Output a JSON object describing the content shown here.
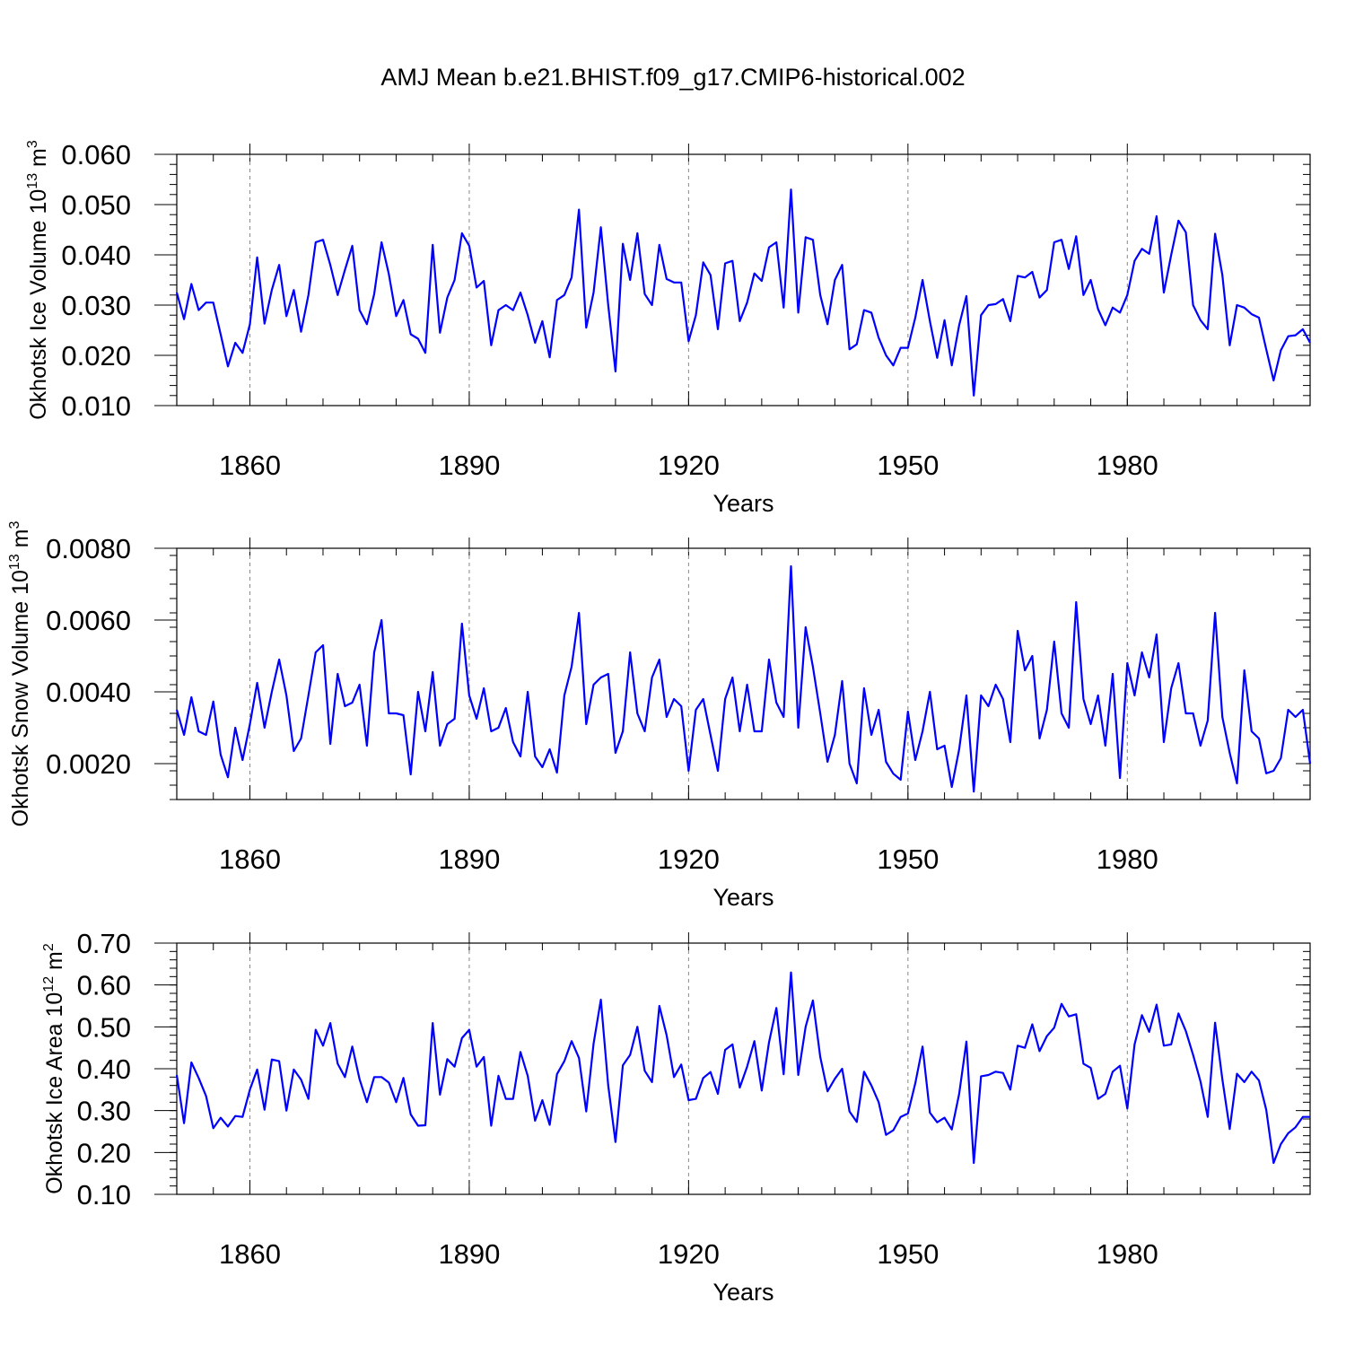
{
  "title": "AMJ Mean b.e21.BHIST.f09_g17.CMIP6-historical.002",
  "line_color": "#0000ff",
  "chart_data": [
    {
      "type": "line",
      "ylabel": "Okhotsk Ice Volume 10",
      "ylabel_exp": "13",
      "ylabel_unit": "m",
      "ylabel_unit_exp": "3",
      "xlabel": "Years",
      "xlim": [
        1850,
        2005
      ],
      "ylim": [
        0.01,
        0.06
      ],
      "yticks": [
        0.01,
        0.02,
        0.03,
        0.04,
        0.05,
        0.06
      ],
      "ytick_labels": [
        "0.010",
        "0.020",
        "0.030",
        "0.040",
        "0.050",
        "0.060"
      ],
      "xticks": [
        1860,
        1890,
        1920,
        1950,
        1980
      ],
      "xtick_labels": [
        "1860",
        "1890",
        "1920",
        "1950",
        "1980"
      ],
      "grid": "dashed vertical at major x ticks",
      "series": [
        {
          "name": "Okhotsk Ice Volume",
          "x_start": 1850,
          "values": [
            0.0325,
            0.0272,
            0.0342,
            0.029,
            0.0305,
            0.0305,
            0.0242,
            0.0178,
            0.0225,
            0.0205,
            0.0262,
            0.0395,
            0.0263,
            0.033,
            0.038,
            0.0278,
            0.033,
            0.0247,
            0.032,
            0.0425,
            0.043,
            0.038,
            0.032,
            0.037,
            0.0418,
            0.029,
            0.0262,
            0.0322,
            0.0425,
            0.0362,
            0.0278,
            0.031,
            0.0242,
            0.0233,
            0.0205,
            0.042,
            0.0245,
            0.0315,
            0.035,
            0.0443,
            0.0418,
            0.0335,
            0.0348,
            0.022,
            0.029,
            0.03,
            0.029,
            0.0325,
            0.028,
            0.0225,
            0.0268,
            0.0196,
            0.031,
            0.032,
            0.0355,
            0.049,
            0.0255,
            0.0325,
            0.0455,
            0.03,
            0.0168,
            0.0422,
            0.035,
            0.0443,
            0.0322,
            0.03,
            0.042,
            0.0352,
            0.0345,
            0.0345,
            0.0228,
            0.028,
            0.0385,
            0.036,
            0.0252,
            0.0383,
            0.0388,
            0.0268,
            0.0305,
            0.0363,
            0.0348,
            0.0415,
            0.0425,
            0.0295,
            0.053,
            0.0285,
            0.0435,
            0.043,
            0.032,
            0.0262,
            0.035,
            0.038,
            0.0212,
            0.0222,
            0.029,
            0.0285,
            0.0235,
            0.02,
            0.018,
            0.0215,
            0.0215,
            0.0275,
            0.035,
            0.0268,
            0.0195,
            0.027,
            0.018,
            0.026,
            0.0318,
            0.012,
            0.028,
            0.03,
            0.0302,
            0.0312,
            0.0268,
            0.0358,
            0.0355,
            0.0366,
            0.0315,
            0.033,
            0.0425,
            0.043,
            0.0372,
            0.0437,
            0.032,
            0.035,
            0.0292,
            0.026,
            0.0295,
            0.0285,
            0.032,
            0.0388,
            0.0412,
            0.0402,
            0.0477,
            0.0325,
            0.04,
            0.0468,
            0.0445,
            0.03,
            0.027,
            0.0252,
            0.0442,
            0.036,
            0.022,
            0.03,
            0.0295,
            0.0282,
            0.0275,
            0.0212,
            0.015,
            0.021,
            0.0238,
            0.024,
            0.0252,
            0.0225
          ]
        }
      ]
    },
    {
      "type": "line",
      "ylabel": "Okhotsk Snow Volume 10",
      "ylabel_exp": "13",
      "ylabel_unit": "m",
      "ylabel_unit_exp": "3",
      "xlabel": "Years",
      "xlim": [
        1850,
        2005
      ],
      "ylim": [
        0.001,
        0.008
      ],
      "yticks": [
        0.002,
        0.004,
        0.006,
        0.008
      ],
      "ytick_labels": [
        "0.0020",
        "0.0040",
        "0.0060",
        "0.0080"
      ],
      "xticks": [
        1860,
        1890,
        1920,
        1950,
        1980
      ],
      "xtick_labels": [
        "1860",
        "1890",
        "1920",
        "1950",
        "1980"
      ],
      "grid": "dashed vertical at major x ticks",
      "series": [
        {
          "name": "Okhotsk Snow Volume",
          "x_start": 1850,
          "values": [
            0.0035,
            0.0028,
            0.00385,
            0.0029,
            0.0028,
            0.00373,
            0.00225,
            0.00162,
            0.003,
            0.0021,
            0.0031,
            0.00425,
            0.003,
            0.004,
            0.0049,
            0.0039,
            0.00235,
            0.0027,
            0.0039,
            0.0051,
            0.0053,
            0.00255,
            0.0045,
            0.0036,
            0.0037,
            0.0042,
            0.0025,
            0.0051,
            0.006,
            0.0034,
            0.0034,
            0.00335,
            0.0017,
            0.004,
            0.0029,
            0.00455,
            0.0025,
            0.0031,
            0.00325,
            0.0059,
            0.0039,
            0.00325,
            0.0041,
            0.0029,
            0.003,
            0.00355,
            0.0026,
            0.0022,
            0.004,
            0.0022,
            0.0019,
            0.0024,
            0.00175,
            0.0039,
            0.0047,
            0.0062,
            0.0031,
            0.0042,
            0.0044,
            0.0045,
            0.0023,
            0.0029,
            0.0051,
            0.0034,
            0.0029,
            0.0044,
            0.0049,
            0.0033,
            0.0038,
            0.0036,
            0.0018,
            0.0035,
            0.0038,
            0.0028,
            0.0018,
            0.0038,
            0.0044,
            0.0029,
            0.0042,
            0.0029,
            0.0029,
            0.0049,
            0.0037,
            0.0033,
            0.0075,
            0.003,
            0.0058,
            0.0047,
            0.0034,
            0.00205,
            0.0028,
            0.0043,
            0.002,
            0.00145,
            0.0041,
            0.0028,
            0.0035,
            0.00205,
            0.00172,
            0.00155,
            0.00345,
            0.0021,
            0.0029,
            0.004,
            0.0024,
            0.0025,
            0.00135,
            0.0024,
            0.0039,
            0.00122,
            0.0039,
            0.0036,
            0.0042,
            0.0038,
            0.0026,
            0.0057,
            0.0046,
            0.005,
            0.0027,
            0.0035,
            0.0054,
            0.0034,
            0.003,
            0.0065,
            0.0038,
            0.0031,
            0.0039,
            0.0025,
            0.0045,
            0.0016,
            0.0048,
            0.0039,
            0.0051,
            0.0044,
            0.0056,
            0.0026,
            0.0041,
            0.0048,
            0.0034,
            0.0034,
            0.0025,
            0.0032,
            0.0062,
            0.0033,
            0.0023,
            0.00145,
            0.0046,
            0.0029,
            0.0027,
            0.00173,
            0.0018,
            0.00215,
            0.0035,
            0.0033,
            0.0035,
            0.002
          ]
        }
      ]
    },
    {
      "type": "line",
      "ylabel": "Okhotsk Ice Area 10",
      "ylabel_exp": "12",
      "ylabel_unit": "m",
      "ylabel_unit_exp": "2",
      "xlabel": "Years",
      "xlim": [
        1850,
        2005
      ],
      "ylim": [
        0.1,
        0.7
      ],
      "yticks": [
        0.1,
        0.2,
        0.3,
        0.4,
        0.5,
        0.6,
        0.7
      ],
      "ytick_labels": [
        "0.10",
        "0.20",
        "0.30",
        "0.40",
        "0.50",
        "0.60",
        "0.70"
      ],
      "xticks": [
        1860,
        1890,
        1920,
        1950,
        1980
      ],
      "xtick_labels": [
        "1860",
        "1890",
        "1920",
        "1950",
        "1980"
      ],
      "grid": "dashed vertical at major x ticks",
      "series": [
        {
          "name": "Okhotsk Ice Area",
          "x_start": 1850,
          "values": [
            0.385,
            0.27,
            0.415,
            0.378,
            0.335,
            0.258,
            0.283,
            0.262,
            0.287,
            0.285,
            0.35,
            0.398,
            0.302,
            0.422,
            0.418,
            0.3,
            0.398,
            0.374,
            0.328,
            0.493,
            0.455,
            0.509,
            0.412,
            0.38,
            0.453,
            0.375,
            0.32,
            0.38,
            0.38,
            0.367,
            0.32,
            0.378,
            0.291,
            0.264,
            0.265,
            0.509,
            0.338,
            0.423,
            0.405,
            0.473,
            0.493,
            0.405,
            0.428,
            0.264,
            0.383,
            0.328,
            0.328,
            0.44,
            0.383,
            0.276,
            0.325,
            0.266,
            0.387,
            0.418,
            0.466,
            0.426,
            0.298,
            0.46,
            0.565,
            0.36,
            0.225,
            0.408,
            0.433,
            0.5,
            0.395,
            0.368,
            0.55,
            0.48,
            0.38,
            0.41,
            0.325,
            0.328,
            0.378,
            0.392,
            0.34,
            0.445,
            0.458,
            0.355,
            0.405,
            0.466,
            0.348,
            0.463,
            0.545,
            0.387,
            0.63,
            0.385,
            0.5,
            0.563,
            0.428,
            0.346,
            0.376,
            0.4,
            0.298,
            0.273,
            0.393,
            0.36,
            0.32,
            0.242,
            0.253,
            0.285,
            0.293,
            0.365,
            0.453,
            0.295,
            0.272,
            0.283,
            0.255,
            0.34,
            0.465,
            0.175,
            0.382,
            0.385,
            0.393,
            0.39,
            0.35,
            0.455,
            0.45,
            0.506,
            0.442,
            0.478,
            0.498,
            0.555,
            0.525,
            0.53,
            0.412,
            0.402,
            0.328,
            0.34,
            0.393,
            0.407,
            0.305,
            0.458,
            0.528,
            0.488,
            0.553,
            0.455,
            0.458,
            0.532,
            0.49,
            0.433,
            0.37,
            0.285,
            0.51,
            0.375,
            0.256,
            0.388,
            0.368,
            0.393,
            0.372,
            0.302,
            0.175,
            0.22,
            0.246,
            0.26,
            0.285,
            0.285
          ]
        }
      ]
    }
  ]
}
